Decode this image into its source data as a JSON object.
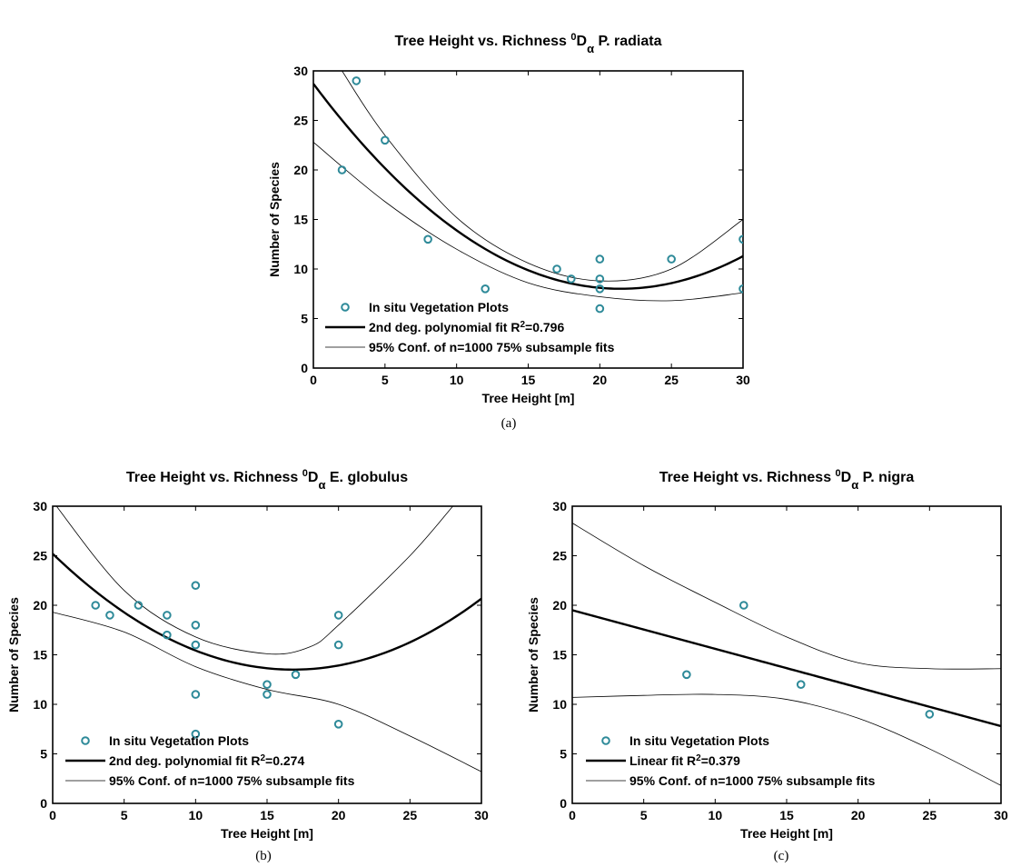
{
  "colors": {
    "marker": "#2e8a99",
    "fit": "#000000",
    "conf": "#000000"
  },
  "chart_data": [
    {
      "type": "scatter",
      "title_main": "Tree Height vs. Richness ",
      "title_super": "0",
      "title_D": "D",
      "title_sub": "α",
      "title_species": " P. radiata",
      "caption": "(a)",
      "xlabel": "Tree Height [m]",
      "ylabel": "Number of Species",
      "xlim": [
        0,
        30
      ],
      "ylim": [
        0,
        30
      ],
      "xticks": [
        0,
        5,
        10,
        15,
        20,
        25,
        30
      ],
      "yticks": [
        0,
        5,
        10,
        15,
        20,
        25,
        30
      ],
      "grid": false,
      "legend_position": "bottom-left",
      "points": [
        {
          "x": 2,
          "y": 20
        },
        {
          "x": 3,
          "y": 29
        },
        {
          "x": 5,
          "y": 23
        },
        {
          "x": 8,
          "y": 13
        },
        {
          "x": 12,
          "y": 8
        },
        {
          "x": 17,
          "y": 10
        },
        {
          "x": 18,
          "y": 9
        },
        {
          "x": 20,
          "y": 11
        },
        {
          "x": 20,
          "y": 9
        },
        {
          "x": 20,
          "y": 8
        },
        {
          "x": 20,
          "y": 6
        },
        {
          "x": 25,
          "y": 11
        },
        {
          "x": 30,
          "y": 13
        },
        {
          "x": 30,
          "y": 8
        }
      ],
      "fit": {
        "kind": "poly2",
        "coef": [
          28.7,
          -1.93,
          0.045
        ]
      },
      "conf_upper": [
        {
          "x": 2,
          "y": 30
        },
        {
          "x": 5,
          "y": 23.5
        },
        {
          "x": 10,
          "y": 15.2
        },
        {
          "x": 15,
          "y": 10.6
        },
        {
          "x": 20,
          "y": 8.8
        },
        {
          "x": 25,
          "y": 10
        },
        {
          "x": 30,
          "y": 15
        }
      ],
      "conf_lower": [
        {
          "x": 0,
          "y": 22.8
        },
        {
          "x": 5,
          "y": 16.8
        },
        {
          "x": 10,
          "y": 12
        },
        {
          "x": 15,
          "y": 8.6
        },
        {
          "x": 20,
          "y": 7.2
        },
        {
          "x": 25,
          "y": 6.8
        },
        {
          "x": 30,
          "y": 7.6
        }
      ],
      "legend": {
        "scatter_label": "In situ Vegetation Plots",
        "fit_label": "2nd deg. polynomial fit R",
        "fit_sup": "2",
        "fit_value": "=0.796",
        "conf_label": "95% Conf. of n=1000 75% subsample fits"
      }
    },
    {
      "type": "scatter",
      "title_main": "Tree Height vs. Richness ",
      "title_super": "0",
      "title_D": "D",
      "title_sub": "α",
      "title_species": " E. globulus",
      "caption": "(b)",
      "xlabel": "Tree Height [m]",
      "ylabel": "Number of Species",
      "xlim": [
        0,
        30
      ],
      "ylim": [
        0,
        30
      ],
      "xticks": [
        0,
        5,
        10,
        15,
        20,
        25,
        30
      ],
      "yticks": [
        0,
        5,
        10,
        15,
        20,
        25,
        30
      ],
      "grid": false,
      "legend_position": "bottom-left",
      "points": [
        {
          "x": 3,
          "y": 20
        },
        {
          "x": 4,
          "y": 19
        },
        {
          "x": 6,
          "y": 20
        },
        {
          "x": 8,
          "y": 19
        },
        {
          "x": 8,
          "y": 17
        },
        {
          "x": 10,
          "y": 22
        },
        {
          "x": 10,
          "y": 18
        },
        {
          "x": 10,
          "y": 16
        },
        {
          "x": 10,
          "y": 11
        },
        {
          "x": 10,
          "y": 7
        },
        {
          "x": 15,
          "y": 12
        },
        {
          "x": 15,
          "y": 11
        },
        {
          "x": 17,
          "y": 13
        },
        {
          "x": 20,
          "y": 19
        },
        {
          "x": 20,
          "y": 16
        },
        {
          "x": 20,
          "y": 8
        }
      ],
      "fit": {
        "kind": "poly2",
        "coef": [
          25.2,
          -1.39,
          0.0413
        ]
      },
      "conf_upper": [
        {
          "x": 0,
          "y": 30.5
        },
        {
          "x": 5,
          "y": 21.5
        },
        {
          "x": 10,
          "y": 16.8
        },
        {
          "x": 15,
          "y": 15.1
        },
        {
          "x": 18,
          "y": 15.8
        },
        {
          "x": 20,
          "y": 18
        },
        {
          "x": 25,
          "y": 25
        },
        {
          "x": 28,
          "y": 30
        }
      ],
      "conf_lower": [
        {
          "x": 0,
          "y": 19.3
        },
        {
          "x": 5,
          "y": 17.3
        },
        {
          "x": 10,
          "y": 13.8
        },
        {
          "x": 15,
          "y": 11.5
        },
        {
          "x": 20,
          "y": 10
        },
        {
          "x": 25,
          "y": 6.8
        },
        {
          "x": 30,
          "y": 3.2
        }
      ],
      "legend": {
        "scatter_label": "In situ Vegetation Plots",
        "fit_label": "2nd deg. polynomial fit R",
        "fit_sup": "2",
        "fit_value": "=0.274",
        "conf_label": "95% Conf. of n=1000 75% subsample fits"
      }
    },
    {
      "type": "scatter",
      "title_main": "Tree Height vs. Richness ",
      "title_super": "0",
      "title_D": "D",
      "title_sub": "α",
      "title_species": " P. nigra",
      "caption": "(c)",
      "xlabel": "Tree Height [m]",
      "ylabel": "Number of Species",
      "xlim": [
        0,
        30
      ],
      "ylim": [
        0,
        30
      ],
      "xticks": [
        0,
        5,
        10,
        15,
        20,
        25,
        30
      ],
      "yticks": [
        0,
        5,
        10,
        15,
        20,
        25,
        30
      ],
      "grid": false,
      "legend_position": "bottom-left",
      "points": [
        {
          "x": 8,
          "y": 13
        },
        {
          "x": 12,
          "y": 20
        },
        {
          "x": 16,
          "y": 12
        },
        {
          "x": 25,
          "y": 9
        }
      ],
      "fit": {
        "kind": "linear",
        "coef": [
          19.5,
          -0.39
        ]
      },
      "conf_upper": [
        {
          "x": 0,
          "y": 28.3
        },
        {
          "x": 5,
          "y": 24
        },
        {
          "x": 10,
          "y": 20.3
        },
        {
          "x": 15,
          "y": 16.8
        },
        {
          "x": 20,
          "y": 14.2
        },
        {
          "x": 25,
          "y": 13.6
        },
        {
          "x": 30,
          "y": 13.6
        }
      ],
      "conf_lower": [
        {
          "x": 0,
          "y": 10.7
        },
        {
          "x": 5,
          "y": 10.9
        },
        {
          "x": 10,
          "y": 11
        },
        {
          "x": 15,
          "y": 10.5
        },
        {
          "x": 20,
          "y": 8.6
        },
        {
          "x": 25,
          "y": 5.5
        },
        {
          "x": 30,
          "y": 1.8
        }
      ],
      "legend": {
        "scatter_label": "In situ Vegetation Plots",
        "fit_label": "Linear fit R",
        "fit_sup": "2",
        "fit_value": "=0.379",
        "conf_label": "95% Conf. of n=1000 75% subsample fits"
      }
    }
  ]
}
